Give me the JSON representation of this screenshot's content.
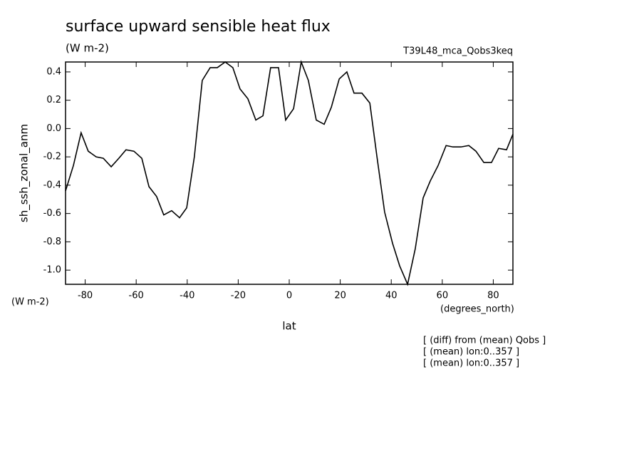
{
  "chart_data": {
    "type": "line",
    "title": "surface upward sensible heat flux",
    "subtitle": "(W m-2)",
    "experiment": "T39L48_mca_Qobs3keq",
    "y_label": "sh_ssh_zonal_anm",
    "y_units": "(W m-2)",
    "x_label": "lat",
    "x_units": "(degrees_north)",
    "notes": [
      "[ (diff) from (mean) Qobs ]",
      "[ (mean) lon:0..357 ]",
      "[ (mean) lon:0..357 ]"
    ],
    "xlim": [
      -87.7,
      87.7
    ],
    "ylim": [
      -1.1,
      0.47
    ],
    "xticks": [
      -80,
      -60,
      -40,
      -20,
      0,
      20,
      40,
      60,
      80
    ],
    "yticks": [
      {
        "value": -1.0,
        "label": "-1.0"
      },
      -0.8,
      -0.6,
      -0.4,
      -0.2,
      {
        "value": 0,
        "label": "0.0"
      },
      0.2,
      0.4
    ],
    "series": [
      {
        "name": "sh_ssh_zonal_anm",
        "color": "#000000",
        "x": [
          -87.7,
          -84.6,
          -81.6,
          -78.8,
          -75.7,
          -72.9,
          -69.8,
          -66.8,
          -64,
          -60.9,
          -57.8,
          -55,
          -52,
          -49.2,
          -46.1,
          -43,
          -40.2,
          -37.2,
          -34.1,
          -31,
          -28.2,
          -25.1,
          -22.1,
          -19.3,
          -16.2,
          -13.1,
          -10.3,
          -7.3,
          -4.2,
          -1.4,
          1.7,
          4.7,
          7.5,
          10.6,
          13.7,
          16.5,
          19.6,
          22.6,
          25.4,
          28.5,
          31.6,
          34.4,
          37.4,
          40.5,
          43.3,
          46.4,
          49.4,
          52.5,
          55.3,
          58.4,
          61.5,
          64.2,
          67.3,
          70.4,
          73.2,
          76.3,
          79.3,
          82.1,
          85.2,
          87.7
        ],
        "values": [
          -0.44,
          -0.26,
          -0.03,
          -0.16,
          -0.2,
          -0.21,
          -0.27,
          -0.21,
          -0.15,
          -0.16,
          -0.21,
          -0.41,
          -0.48,
          -0.61,
          -0.58,
          -0.63,
          -0.56,
          -0.2,
          0.34,
          0.43,
          0.43,
          0.47,
          0.43,
          0.28,
          0.21,
          0.06,
          0.09,
          0.43,
          0.43,
          0.06,
          0.14,
          0.47,
          0.34,
          0.06,
          0.03,
          0.15,
          0.35,
          0.4,
          0.25,
          0.25,
          0.18,
          -0.2,
          -0.59,
          -0.81,
          -0.97,
          -1.1,
          -0.85,
          -0.49,
          -0.37,
          -0.26,
          -0.12,
          -0.13,
          -0.13,
          -0.12,
          -0.16,
          -0.24,
          -0.24,
          -0.14,
          -0.15,
          -0.04
        ]
      }
    ]
  }
}
